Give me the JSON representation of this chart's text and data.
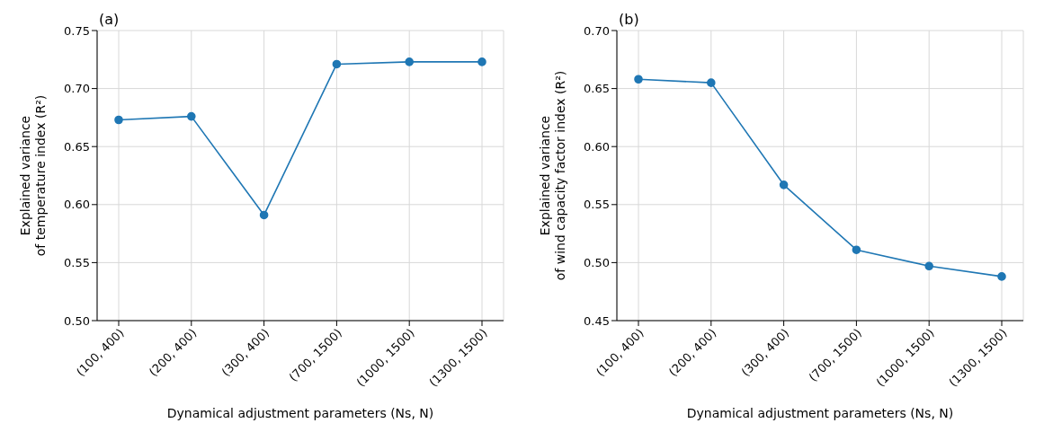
{
  "chart_data": [
    {
      "type": "line",
      "title": "(a)",
      "xlabel": "Dynamical adjustment parameters (Ns, N)",
      "ylabel": "Explained variance\nof temperature index (R²)",
      "categories": [
        "(100, 400)",
        "(200, 400)",
        "(300, 400)",
        "(700, 1500)",
        "(1000, 1500)",
        "(1300, 1500)"
      ],
      "series": [
        {
          "color": "#1f77b4",
          "values": [
            0.673,
            0.676,
            0.591,
            0.721,
            0.723,
            0.723
          ]
        }
      ],
      "ylim": [
        0.5,
        0.75
      ],
      "yticks": [
        {
          "value": 0.5,
          "label": "0.50"
        },
        0.55,
        {
          "value": 0.6,
          "label": "0.60"
        },
        0.65,
        {
          "value": 0.7,
          "label": "0.70"
        },
        0.75
      ],
      "grid": true,
      "marker": "circle",
      "line_style": "solid"
    },
    {
      "type": "line",
      "title": "(b)",
      "xlabel": "Dynamical adjustment parameters (Ns, N)",
      "ylabel": "Explained variance\nof wind capacity factor index (R²)",
      "categories": [
        "(100, 400)",
        "(200, 400)",
        "(300, 400)",
        "(700, 1500)",
        "(1000, 1500)",
        "(1300, 1500)"
      ],
      "series": [
        {
          "color": "#1f77b4",
          "values": [
            0.658,
            0.655,
            0.567,
            0.511,
            0.497,
            0.488
          ]
        }
      ],
      "ylim": [
        0.45,
        0.7
      ],
      "yticks": [
        0.45,
        {
          "value": 0.5,
          "label": "0.50"
        },
        0.55,
        {
          "value": 0.6,
          "label": "0.60"
        },
        0.65,
        {
          "value": 0.7,
          "label": "0.70"
        }
      ],
      "grid": true,
      "marker": "circle",
      "line_style": "solid"
    }
  ]
}
